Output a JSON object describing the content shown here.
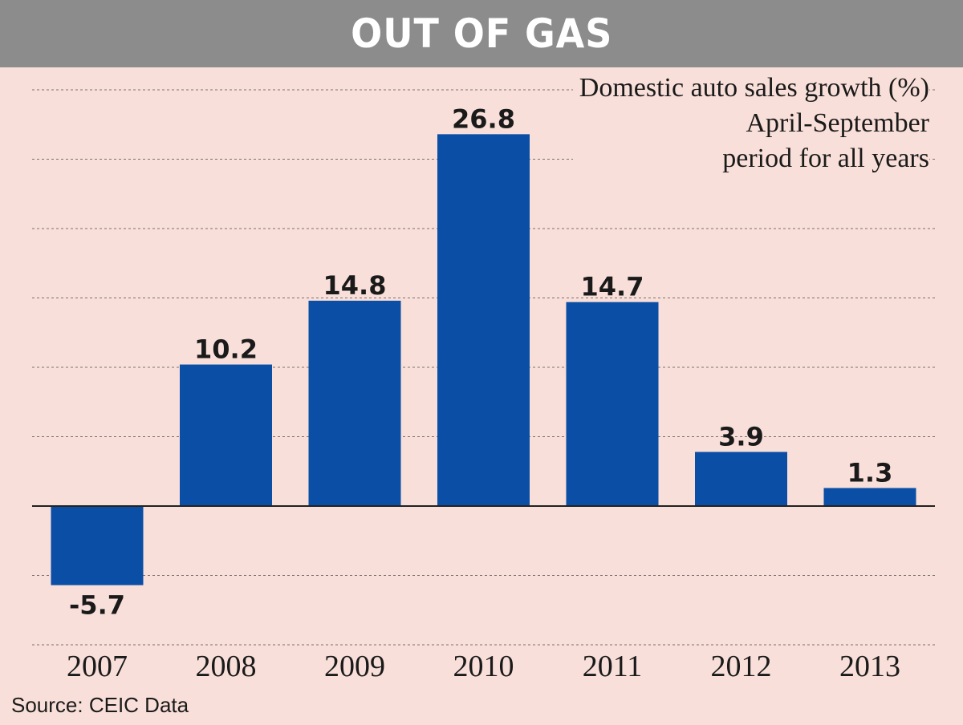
{
  "title": "OUT OF GAS",
  "subtitle_lines": [
    "Domestic auto sales growth (%)",
    "April-September",
    "period for all years"
  ],
  "source": "Source: CEIC Data",
  "colors": {
    "background": "#f9dfd9",
    "title_bar": "#8c8c8c",
    "bar": "#0a4ea6",
    "text": "#1a1a1a"
  },
  "chart_data": {
    "type": "bar",
    "categories": [
      "2007",
      "2008",
      "2009",
      "2010",
      "2011",
      "2012",
      "2013"
    ],
    "values": [
      -5.7,
      10.2,
      14.8,
      26.8,
      14.7,
      3.9,
      1.3
    ],
    "data_labels": [
      "-5.7",
      "10.2",
      "14.8",
      "26.8",
      "14.7",
      "3.9",
      "1.3"
    ],
    "title": "OUT OF GAS",
    "ylabel": "Domestic auto sales growth (%)",
    "xlabel": "",
    "ylim": [
      -10,
      30
    ],
    "grid": "dashed horizontal every 5",
    "legend": "none"
  }
}
